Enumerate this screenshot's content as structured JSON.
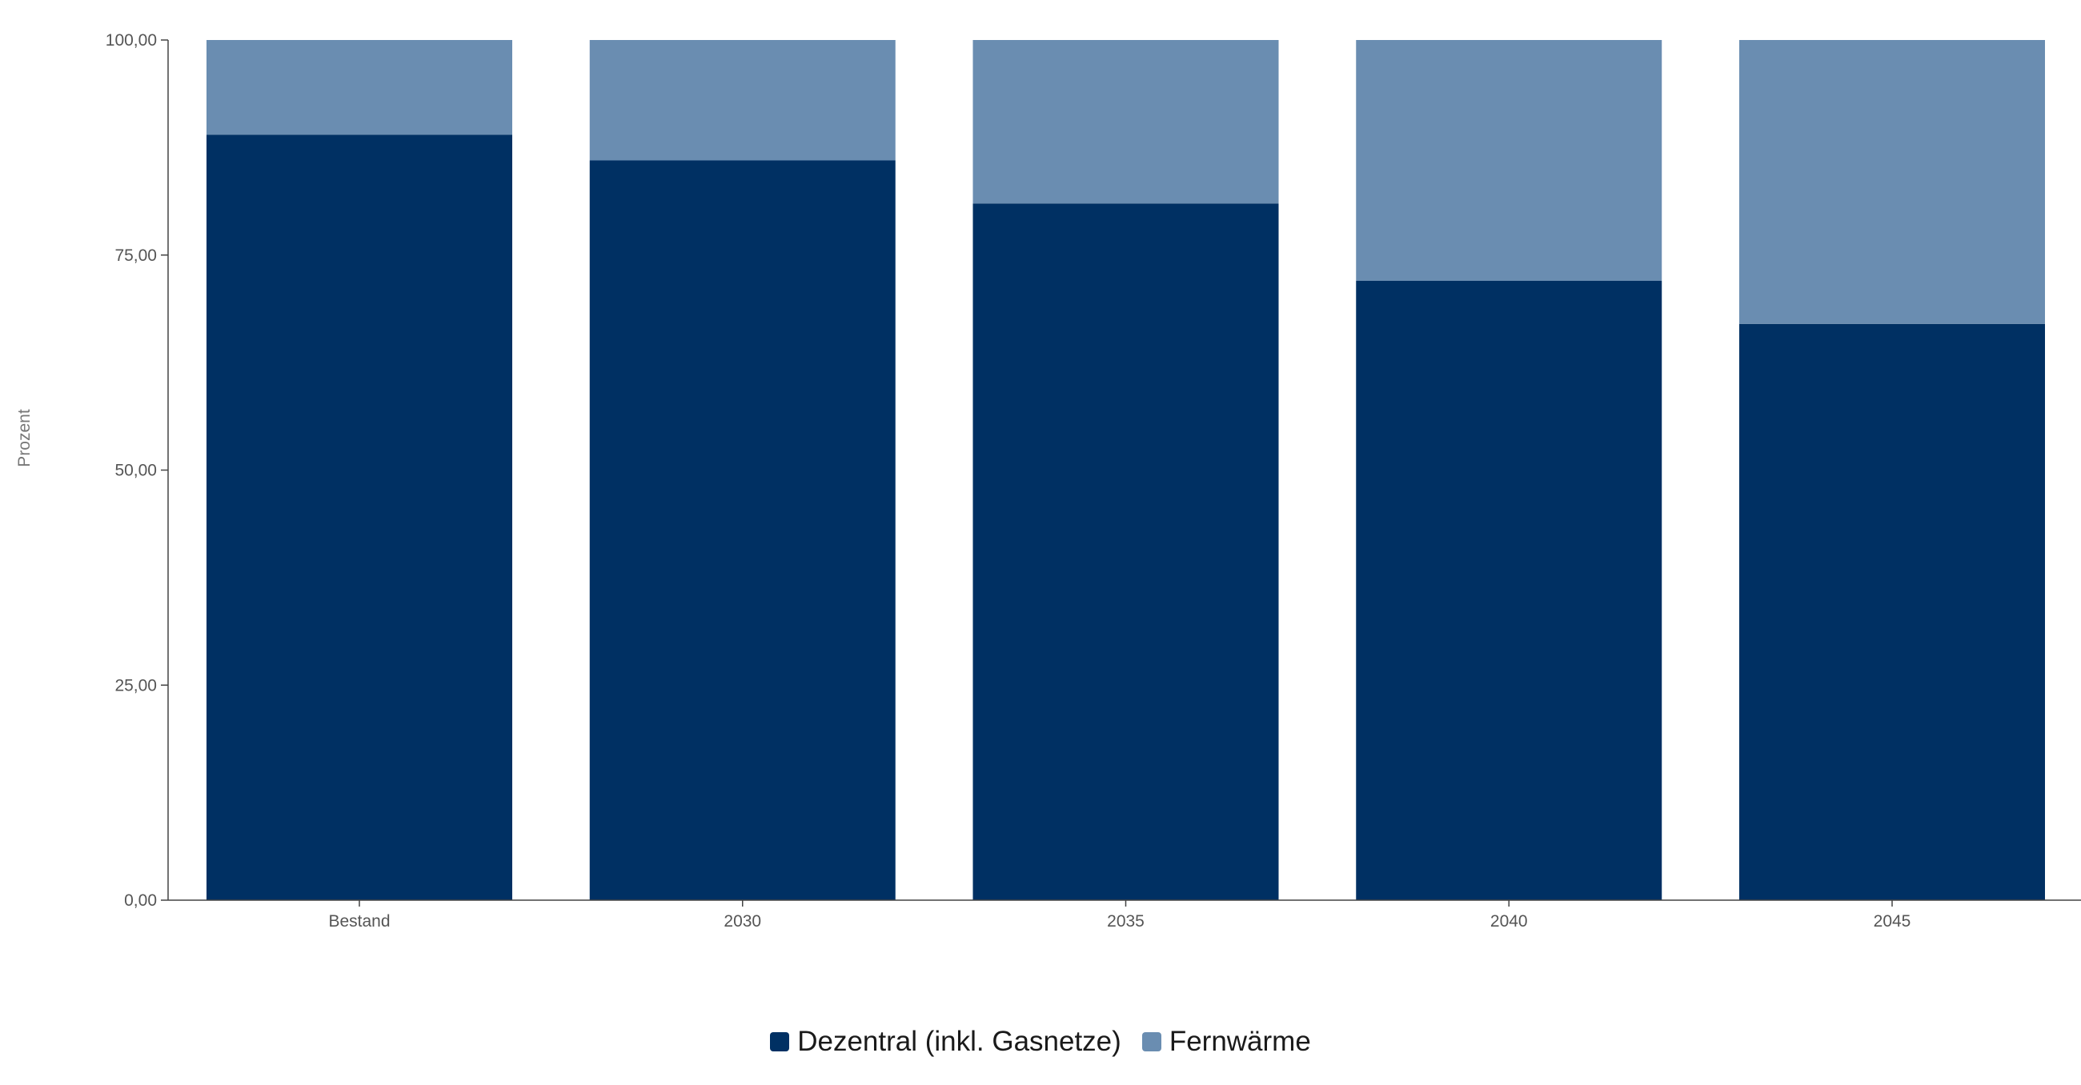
{
  "chart_data": {
    "type": "bar",
    "stacked": true,
    "categories": [
      "Bestand",
      "2030",
      "2035",
      "2040",
      "2045"
    ],
    "series": [
      {
        "name": "Dezentral (inkl. Gasnetze)",
        "color": "#003063",
        "values": [
          89,
          86,
          81,
          72,
          67
        ]
      },
      {
        "name": "Fernwärme",
        "color": "#6a8db1",
        "values": [
          11,
          14,
          19,
          28,
          33
        ]
      }
    ],
    "title": "",
    "xlabel": "",
    "ylabel": "Prozent",
    "ylim": [
      0,
      100
    ],
    "yticks": [
      0,
      25,
      50,
      75,
      100
    ],
    "ytick_labels": [
      "0,00",
      "25,00",
      "50,00",
      "75,00",
      "100,00"
    ],
    "grid": false,
    "legend_position": "bottom-center"
  }
}
